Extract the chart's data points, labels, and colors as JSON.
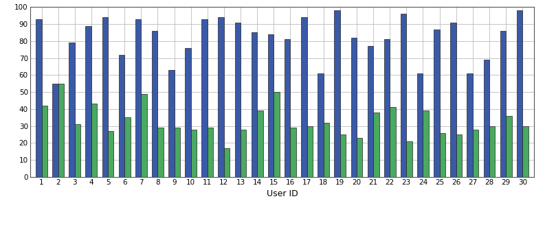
{
  "user_ids": [
    1,
    2,
    3,
    4,
    5,
    6,
    7,
    8,
    9,
    10,
    11,
    12,
    13,
    14,
    15,
    16,
    17,
    18,
    19,
    20,
    21,
    22,
    23,
    24,
    25,
    26,
    27,
    28,
    29,
    30
  ],
  "minutiae": [
    93,
    55,
    79,
    89,
    94,
    72,
    93,
    86,
    63,
    76,
    93,
    94,
    91,
    85,
    84,
    81,
    94,
    61,
    98,
    82,
    77,
    81,
    96,
    61,
    87,
    91,
    61,
    69,
    86,
    98
  ],
  "quality": [
    42,
    55,
    31,
    43,
    27,
    35,
    49,
    29,
    29,
    28,
    29,
    17,
    28,
    39,
    50,
    29,
    30,
    32,
    25,
    23,
    38,
    41,
    21,
    39,
    26,
    25,
    28,
    30,
    36,
    30
  ],
  "bar_color_minutiae": "#3a5aa8",
  "bar_color_quality": "#4aaa60",
  "bar_edge_color": "#222222",
  "ylabel_max": 100,
  "yticks": [
    0,
    10,
    20,
    30,
    40,
    50,
    60,
    70,
    80,
    90,
    100
  ],
  "xlabel": "User ID",
  "background_color": "#ffffff",
  "grid_color": "#bbbbbb",
  "bar_width": 0.35
}
